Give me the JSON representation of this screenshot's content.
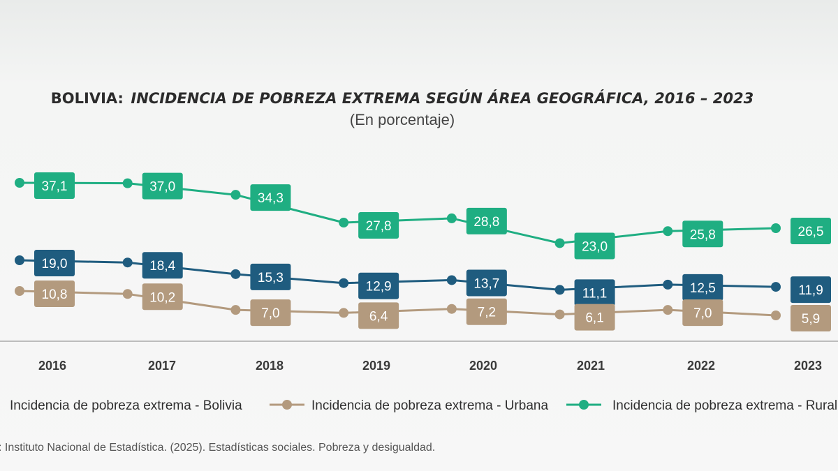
{
  "chart_data": {
    "type": "line",
    "title_prefix": "BOLIVIA:",
    "title": "INCIDENCIA DE POBREZA EXTREMA SEGÚN ÁREA GEOGRÁFICA, 2016 – 2023",
    "subtitle": "(En porcentaje)",
    "categories": [
      "2016",
      "2017",
      "2018",
      "2019",
      "2020",
      "2021",
      "2022",
      "2023"
    ],
    "series": [
      {
        "key": "rural",
        "name": "Incidencia de pobreza extrema - Rural",
        "color": "#1fae82",
        "values": [
          37.1,
          37.0,
          34.3,
          27.8,
          28.8,
          23.0,
          25.8,
          26.5
        ],
        "labels": [
          "37,1",
          "37,0",
          "34,3",
          "27,8",
          "28,8",
          "23,0",
          "25,8",
          "26,5"
        ]
      },
      {
        "key": "bolivia",
        "name": "Incidencia de pobreza extrema - Bolivia",
        "color": "#1f5c7f",
        "values": [
          19.0,
          18.4,
          15.3,
          12.9,
          13.7,
          11.1,
          12.5,
          11.9
        ],
        "labels": [
          "19,0",
          "18,4",
          "15,3",
          "12,9",
          "13,7",
          "11,1",
          "12,5",
          "11,9"
        ]
      },
      {
        "key": "urbana",
        "name": "Incidencia de pobreza extrema - Urbana",
        "color": "#b39a7e",
        "values": [
          10.8,
          10.2,
          7.0,
          6.4,
          7.2,
          6.1,
          7.0,
          5.9
        ],
        "labels": [
          "10,8",
          "10,2",
          "7,0",
          "6,4",
          "7,2",
          "6,1",
          "7,0",
          "5,9"
        ]
      }
    ],
    "legend_order": [
      "bolivia",
      "urbana",
      "rural"
    ],
    "ylim": [
      0,
      40
    ],
    "grid": false,
    "legend_position": "bottom"
  },
  "source": ": Instituto Nacional de Estadística. (2025). Estadísticas sociales. Pobreza y desigualdad."
}
